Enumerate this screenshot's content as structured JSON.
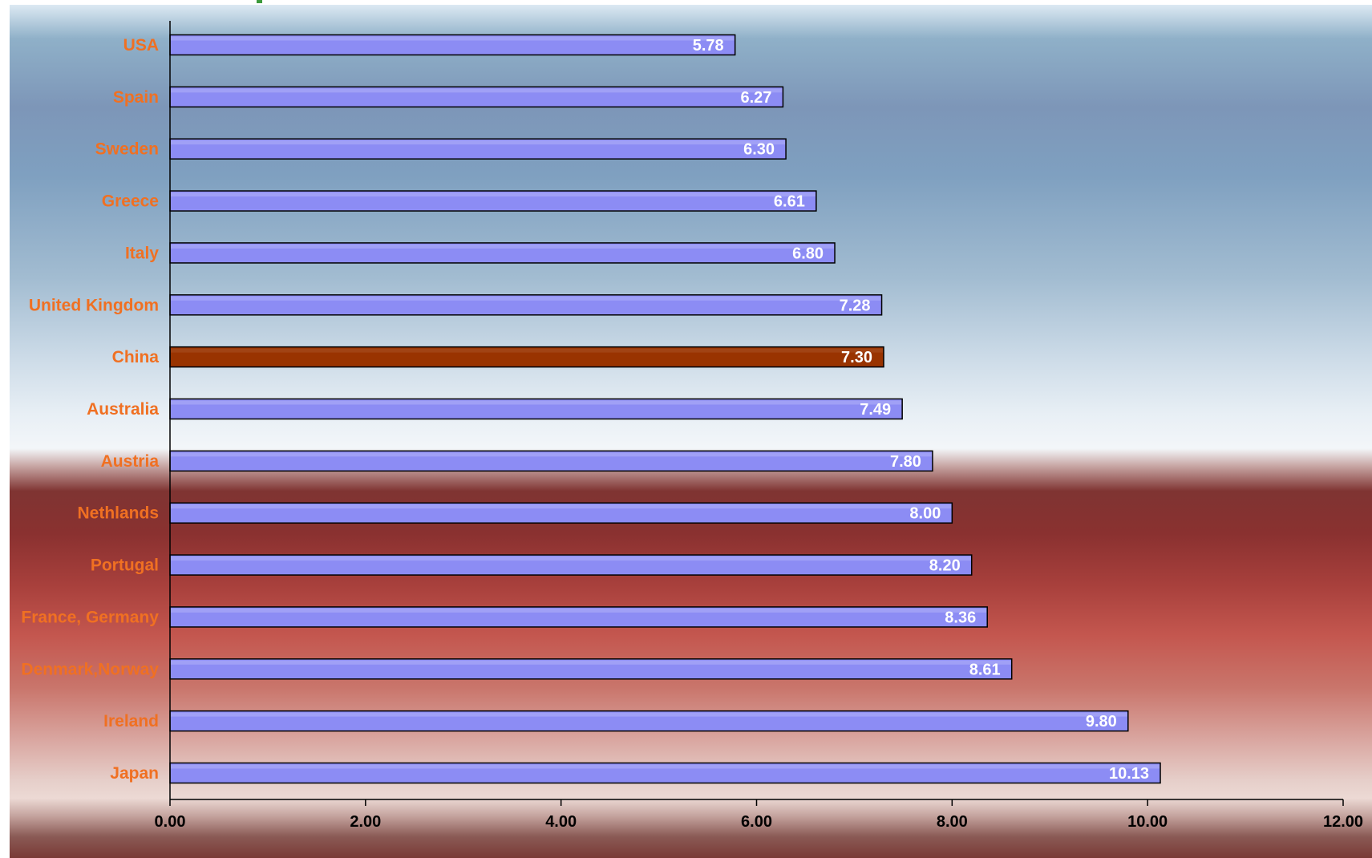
{
  "chart_data": {
    "type": "bar",
    "orientation": "horizontal",
    "categories": [
      "USA",
      "Spain",
      "Sweden",
      "Greece",
      "Italy",
      "United Kingdom",
      "China",
      "Australia",
      "Austria",
      "Nethlands",
      "Portugal",
      "France, Germany",
      "Denmark,Norway",
      "Ireland",
      "Japan"
    ],
    "values": [
      5.78,
      6.27,
      6.3,
      6.61,
      6.8,
      7.28,
      7.3,
      7.49,
      7.8,
      8.0,
      8.2,
      8.36,
      8.61,
      9.8,
      10.13
    ],
    "value_labels": [
      "5.78",
      "6.27",
      "6.30",
      "6.61",
      "6.80",
      "7.28",
      "7.30",
      "7.49",
      "7.80",
      "8.00",
      "8.20",
      "8.36",
      "8.61",
      "9.80",
      "10.13"
    ],
    "highlight_category": "China",
    "xlim": [
      0,
      12
    ],
    "x_ticks": [
      0,
      2,
      4,
      6,
      8,
      10,
      12
    ],
    "x_tick_labels": [
      "0.00",
      "2.00",
      "4.00",
      "6.00",
      "8.00",
      "10.00",
      "12.00"
    ],
    "title": "",
    "xlabel": "",
    "ylabel": "",
    "grid": false,
    "legend": "none",
    "colors": {
      "bar_fill": "#8c8cf4",
      "bar_fill_highlight": "#993300",
      "bar_stroke": "#000000",
      "category_label": "#f07022",
      "value_label": "#ffffff",
      "tick_label": "#000000"
    }
  }
}
